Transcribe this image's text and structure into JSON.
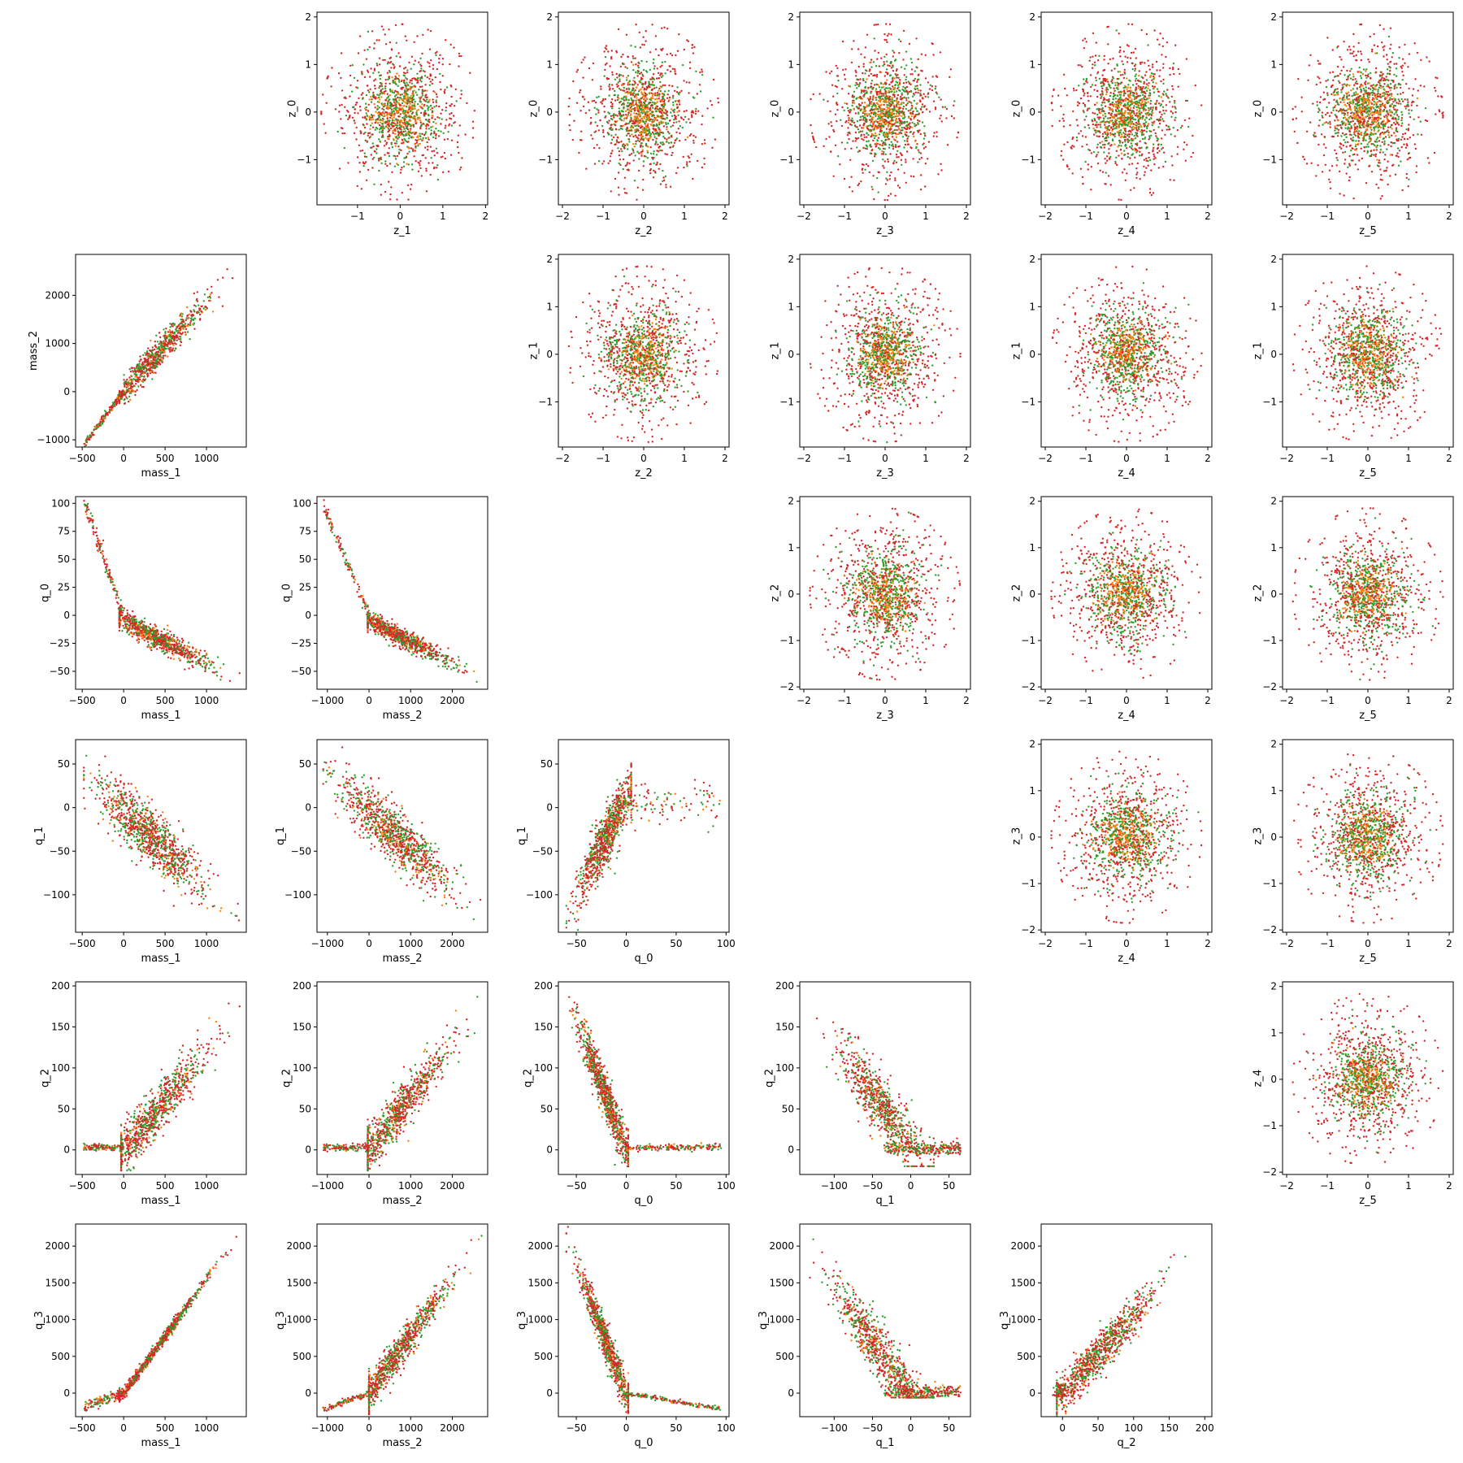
{
  "colors": {
    "red": "#d62728",
    "green": "#2ca02c",
    "orange": "#ff7f0e",
    "frame": "#000000"
  },
  "chart_data": [
    {
      "type": "scatter",
      "row": 0,
      "col": 1,
      "xlabel": "z_1",
      "ylabel": "z_0",
      "xlim": [
        -1.95,
        2.05
      ],
      "ylim": [
        -1.95,
        2.1
      ],
      "xticks": [
        -1,
        0,
        1,
        2
      ],
      "yticks": [
        -1,
        0,
        1,
        2
      ],
      "pattern": "round"
    },
    {
      "type": "scatter",
      "row": 0,
      "col": 2,
      "xlabel": "z_2",
      "ylabel": "z_0",
      "xlim": [
        -2.1,
        2.1
      ],
      "ylim": [
        -1.95,
        2.1
      ],
      "xticks": [
        -2,
        -1,
        0,
        1,
        2
      ],
      "yticks": [
        -1,
        0,
        1,
        2
      ],
      "pattern": "round"
    },
    {
      "type": "scatter",
      "row": 0,
      "col": 3,
      "xlabel": "z_3",
      "ylabel": "z_0",
      "xlim": [
        -2.1,
        2.1
      ],
      "ylim": [
        -1.95,
        2.1
      ],
      "xticks": [
        -2,
        -1,
        0,
        1,
        2
      ],
      "yticks": [
        -1,
        0,
        1,
        2
      ],
      "pattern": "round"
    },
    {
      "type": "scatter",
      "row": 0,
      "col": 4,
      "xlabel": "z_4",
      "ylabel": "z_0",
      "xlim": [
        -2.1,
        2.1
      ],
      "ylim": [
        -1.95,
        2.1
      ],
      "xticks": [
        -2,
        -1,
        0,
        1,
        2
      ],
      "yticks": [
        -1,
        0,
        1,
        2
      ],
      "pattern": "round"
    },
    {
      "type": "scatter",
      "row": 0,
      "col": 5,
      "xlabel": "z_5",
      "ylabel": "z_0",
      "xlim": [
        -2.1,
        2.1
      ],
      "ylim": [
        -1.95,
        2.1
      ],
      "xticks": [
        -2,
        -1,
        0,
        1,
        2
      ],
      "yticks": [
        -1,
        0,
        1,
        2
      ],
      "pattern": "round"
    },
    {
      "type": "scatter",
      "row": 1,
      "col": 0,
      "xlabel": "mass_1",
      "ylabel": "mass_2",
      "xlim": [
        -580,
        1480
      ],
      "ylim": [
        -1150,
        2850
      ],
      "xticks": [
        -500,
        0,
        500,
        1000
      ],
      "yticks": [
        -1000,
        0,
        1000,
        2000
      ],
      "pattern": "mass12"
    },
    {
      "type": "scatter",
      "row": 1,
      "col": 2,
      "xlabel": "z_2",
      "ylabel": "z_1",
      "xlim": [
        -2.1,
        2.1
      ],
      "ylim": [
        -1.95,
        2.1
      ],
      "xticks": [
        -2,
        -1,
        0,
        1,
        2
      ],
      "yticks": [
        -1,
        0,
        1,
        2
      ],
      "pattern": "round"
    },
    {
      "type": "scatter",
      "row": 1,
      "col": 3,
      "xlabel": "z_3",
      "ylabel": "z_1",
      "xlim": [
        -2.1,
        2.1
      ],
      "ylim": [
        -1.95,
        2.1
      ],
      "xticks": [
        -2,
        -1,
        0,
        1,
        2
      ],
      "yticks": [
        -1,
        0,
        1,
        2
      ],
      "pattern": "round"
    },
    {
      "type": "scatter",
      "row": 1,
      "col": 4,
      "xlabel": "z_4",
      "ylabel": "z_1",
      "xlim": [
        -2.1,
        2.1
      ],
      "ylim": [
        -1.95,
        2.1
      ],
      "xticks": [
        -2,
        -1,
        0,
        1,
        2
      ],
      "yticks": [
        -1,
        0,
        1,
        2
      ],
      "pattern": "round"
    },
    {
      "type": "scatter",
      "row": 1,
      "col": 5,
      "xlabel": "z_5",
      "ylabel": "z_1",
      "xlim": [
        -2.1,
        2.1
      ],
      "ylim": [
        -1.95,
        2.1
      ],
      "xticks": [
        -2,
        -1,
        0,
        1,
        2
      ],
      "yticks": [
        -1,
        0,
        1,
        2
      ],
      "pattern": "round"
    },
    {
      "type": "scatter",
      "row": 2,
      "col": 0,
      "xlabel": "mass_1",
      "ylabel": "q_0",
      "xlim": [
        -580,
        1480
      ],
      "ylim": [
        -66,
        106
      ],
      "xticks": [
        -500,
        0,
        500,
        1000
      ],
      "yticks": [
        -50,
        -25,
        0,
        25,
        50,
        75,
        100
      ],
      "pattern": "m1q0"
    },
    {
      "type": "scatter",
      "row": 2,
      "col": 1,
      "xlabel": "mass_2",
      "ylabel": "q_0",
      "xlim": [
        -1250,
        2850
      ],
      "ylim": [
        -66,
        106
      ],
      "xticks": [
        -1000,
        0,
        1000,
        2000
      ],
      "yticks": [
        -50,
        -25,
        0,
        25,
        50,
        75,
        100
      ],
      "pattern": "m2q0"
    },
    {
      "type": "scatter",
      "row": 2,
      "col": 3,
      "xlabel": "z_3",
      "ylabel": "z_2",
      "xlim": [
        -2.1,
        2.1
      ],
      "ylim": [
        -2.05,
        2.1
      ],
      "xticks": [
        -2,
        -1,
        0,
        1,
        2
      ],
      "yticks": [
        -2,
        -1,
        0,
        1,
        2
      ],
      "pattern": "round"
    },
    {
      "type": "scatter",
      "row": 2,
      "col": 4,
      "xlabel": "z_4",
      "ylabel": "z_2",
      "xlim": [
        -2.1,
        2.1
      ],
      "ylim": [
        -2.05,
        2.1
      ],
      "xticks": [
        -2,
        -1,
        0,
        1,
        2
      ],
      "yticks": [
        -2,
        -1,
        0,
        1,
        2
      ],
      "pattern": "round"
    },
    {
      "type": "scatter",
      "row": 2,
      "col": 5,
      "xlabel": "z_5",
      "ylabel": "z_2",
      "xlim": [
        -2.1,
        2.1
      ],
      "ylim": [
        -2.05,
        2.1
      ],
      "xticks": [
        -2,
        -1,
        0,
        1,
        2
      ],
      "yticks": [
        -2,
        -1,
        0,
        1,
        2
      ],
      "pattern": "round"
    },
    {
      "type": "scatter",
      "row": 3,
      "col": 0,
      "xlabel": "mass_1",
      "ylabel": "q_1",
      "xlim": [
        -580,
        1480
      ],
      "ylim": [
        -143,
        78
      ],
      "xticks": [
        -500,
        0,
        500,
        1000
      ],
      "yticks": [
        -100,
        -50,
        0,
        50
      ],
      "pattern": "m1q1"
    },
    {
      "type": "scatter",
      "row": 3,
      "col": 1,
      "xlabel": "mass_2",
      "ylabel": "q_1",
      "xlim": [
        -1250,
        2850
      ],
      "ylim": [
        -143,
        78
      ],
      "xticks": [
        -1000,
        0,
        1000,
        2000
      ],
      "yticks": [
        -100,
        -50,
        0,
        50
      ],
      "pattern": "m2q1"
    },
    {
      "type": "scatter",
      "row": 3,
      "col": 2,
      "xlabel": "q_0",
      "ylabel": "q_1",
      "xlim": [
        -68,
        103
      ],
      "ylim": [
        -143,
        78
      ],
      "xticks": [
        -50,
        0,
        50,
        100
      ],
      "yticks": [
        -100,
        -50,
        0,
        50
      ],
      "pattern": "q0q1"
    },
    {
      "type": "scatter",
      "row": 3,
      "col": 4,
      "xlabel": "z_4",
      "ylabel": "z_3",
      "xlim": [
        -2.1,
        2.1
      ],
      "ylim": [
        -2.05,
        2.1
      ],
      "xticks": [
        -2,
        -1,
        0,
        1,
        2
      ],
      "yticks": [
        -2,
        -1,
        0,
        1,
        2
      ],
      "pattern": "round"
    },
    {
      "type": "scatter",
      "row": 3,
      "col": 5,
      "xlabel": "z_5",
      "ylabel": "z_3",
      "xlim": [
        -2.1,
        2.1
      ],
      "ylim": [
        -2.05,
        2.1
      ],
      "xticks": [
        -2,
        -1,
        0,
        1,
        2
      ],
      "yticks": [
        -2,
        -1,
        0,
        1,
        2
      ],
      "pattern": "round"
    },
    {
      "type": "scatter",
      "row": 4,
      "col": 0,
      "xlabel": "mass_1",
      "ylabel": "q_2",
      "xlim": [
        -580,
        1480
      ],
      "ylim": [
        -30,
        205
      ],
      "xticks": [
        -500,
        0,
        500,
        1000
      ],
      "yticks": [
        0,
        50,
        100,
        150,
        200
      ],
      "pattern": "m1q2"
    },
    {
      "type": "scatter",
      "row": 4,
      "col": 1,
      "xlabel": "mass_2",
      "ylabel": "q_2",
      "xlim": [
        -1250,
        2850
      ],
      "ylim": [
        -30,
        205
      ],
      "xticks": [
        -1000,
        0,
        1000,
        2000
      ],
      "yticks": [
        0,
        50,
        100,
        150,
        200
      ],
      "pattern": "m2q2"
    },
    {
      "type": "scatter",
      "row": 4,
      "col": 2,
      "xlabel": "q_0",
      "ylabel": "q_2",
      "xlim": [
        -68,
        103
      ],
      "ylim": [
        -30,
        205
      ],
      "xticks": [
        -50,
        0,
        50,
        100
      ],
      "yticks": [
        0,
        50,
        100,
        150,
        200
      ],
      "pattern": "q0q2"
    },
    {
      "type": "scatter",
      "row": 4,
      "col": 3,
      "xlabel": "q_1",
      "ylabel": "q_2",
      "xlim": [
        -145,
        78
      ],
      "ylim": [
        -30,
        205
      ],
      "xticks": [
        -100,
        -50,
        0,
        50
      ],
      "yticks": [
        0,
        50,
        100,
        150,
        200
      ],
      "pattern": "q1q2"
    },
    {
      "type": "scatter",
      "row": 4,
      "col": 5,
      "xlabel": "z_5",
      "ylabel": "z_4",
      "xlim": [
        -2.1,
        2.1
      ],
      "ylim": [
        -2.05,
        2.1
      ],
      "xticks": [
        -2,
        -1,
        0,
        1,
        2
      ],
      "yticks": [
        -2,
        -1,
        0,
        1,
        2
      ],
      "pattern": "round"
    },
    {
      "type": "scatter",
      "row": 5,
      "col": 0,
      "xlabel": "mass_1",
      "ylabel": "q_3",
      "xlim": [
        -580,
        1480
      ],
      "ylim": [
        -320,
        2300
      ],
      "xticks": [
        -500,
        0,
        500,
        1000
      ],
      "yticks": [
        0,
        500,
        1000,
        1500,
        2000
      ],
      "pattern": "m1q3"
    },
    {
      "type": "scatter",
      "row": 5,
      "col": 1,
      "xlabel": "mass_2",
      "ylabel": "q_3",
      "xlim": [
        -1250,
        2850
      ],
      "ylim": [
        -320,
        2300
      ],
      "xticks": [
        -1000,
        0,
        1000,
        2000
      ],
      "yticks": [
        0,
        500,
        1000,
        1500,
        2000
      ],
      "pattern": "m2q3"
    },
    {
      "type": "scatter",
      "row": 5,
      "col": 2,
      "xlabel": "q_0",
      "ylabel": "q_3",
      "xlim": [
        -68,
        103
      ],
      "ylim": [
        -320,
        2300
      ],
      "xticks": [
        -50,
        0,
        50,
        100
      ],
      "yticks": [
        0,
        500,
        1000,
        1500,
        2000
      ],
      "pattern": "q0q3"
    },
    {
      "type": "scatter",
      "row": 5,
      "col": 3,
      "xlabel": "q_1",
      "ylabel": "q_3",
      "xlim": [
        -145,
        78
      ],
      "ylim": [
        -320,
        2300
      ],
      "xticks": [
        -100,
        -50,
        0,
        50
      ],
      "yticks": [
        0,
        500,
        1000,
        1500,
        2000
      ],
      "pattern": "q1q3"
    },
    {
      "type": "scatter",
      "row": 5,
      "col": 4,
      "xlabel": "q_2",
      "ylabel": "q_3",
      "xlim": [
        -30,
        210
      ],
      "ylim": [
        -320,
        2300
      ],
      "xticks": [
        0,
        50,
        100,
        150,
        200
      ],
      "yticks": [
        0,
        500,
        1000,
        1500,
        2000
      ],
      "pattern": "q2q3"
    }
  ]
}
